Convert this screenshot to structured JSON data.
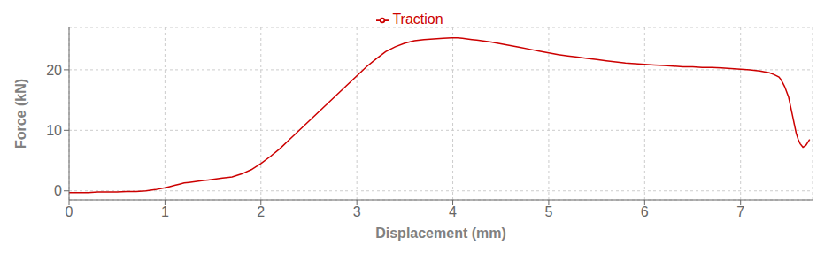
{
  "chart_data": {
    "type": "line",
    "xlabel": "Displacement (mm)",
    "ylabel": "Force (kN)",
    "xlim": [
      0,
      7.75
    ],
    "ylim": [
      -1.5,
      27
    ],
    "xticks": [
      0,
      1,
      2,
      3,
      4,
      5,
      6,
      7
    ],
    "yticks": [
      0,
      10,
      20
    ],
    "grid": true,
    "legend": "top",
    "x": [
      0.0,
      0.05,
      0.1,
      0.2,
      0.3,
      0.4,
      0.5,
      0.6,
      0.7,
      0.8,
      0.9,
      1.0,
      1.05,
      1.1,
      1.15,
      1.2,
      1.25,
      1.3,
      1.35,
      1.4,
      1.45,
      1.5,
      1.55,
      1.6,
      1.7,
      1.8,
      1.9,
      2.0,
      2.1,
      2.2,
      2.3,
      2.4,
      2.5,
      2.6,
      2.7,
      2.8,
      2.9,
      3.0,
      3.1,
      3.2,
      3.3,
      3.4,
      3.5,
      3.6,
      3.7,
      3.8,
      3.9,
      4.0,
      4.05,
      4.1,
      4.15,
      4.2,
      4.25,
      4.3,
      4.35,
      4.4,
      4.5,
      4.6,
      4.7,
      4.8,
      4.9,
      5.0,
      5.1,
      5.2,
      5.3,
      5.4,
      5.5,
      5.6,
      5.7,
      5.8,
      5.9,
      6.0,
      6.1,
      6.2,
      6.3,
      6.4,
      6.5,
      6.6,
      6.7,
      6.8,
      6.9,
      7.0,
      7.1,
      7.2,
      7.3,
      7.35,
      7.4,
      7.42,
      7.44,
      7.46,
      7.5,
      7.52,
      7.54,
      7.56,
      7.58,
      7.6,
      7.62,
      7.65,
      7.68,
      7.72
    ],
    "series": [
      {
        "name": "Traction",
        "color": "#cc0000",
        "values": [
          -0.3,
          -0.3,
          -0.3,
          -0.3,
          -0.2,
          -0.2,
          -0.2,
          -0.1,
          -0.1,
          0.0,
          0.2,
          0.5,
          0.7,
          0.9,
          1.1,
          1.3,
          1.4,
          1.5,
          1.6,
          1.7,
          1.8,
          1.9,
          2.0,
          2.1,
          2.3,
          2.8,
          3.5,
          4.5,
          5.7,
          7.0,
          8.5,
          10.0,
          11.5,
          13.0,
          14.5,
          16.0,
          17.5,
          19.0,
          20.5,
          21.8,
          23.0,
          23.8,
          24.4,
          24.8,
          25.0,
          25.1,
          25.2,
          25.3,
          25.3,
          25.2,
          25.1,
          25.0,
          24.9,
          24.8,
          24.7,
          24.6,
          24.3,
          24.0,
          23.7,
          23.4,
          23.1,
          22.8,
          22.5,
          22.3,
          22.1,
          21.9,
          21.7,
          21.5,
          21.3,
          21.1,
          21.0,
          20.9,
          20.8,
          20.7,
          20.6,
          20.5,
          20.5,
          20.4,
          20.4,
          20.3,
          20.2,
          20.1,
          20.0,
          19.8,
          19.5,
          19.2,
          18.8,
          18.4,
          17.8,
          17.2,
          15.5,
          14.0,
          12.5,
          11.0,
          9.5,
          8.5,
          7.8,
          7.2,
          7.5,
          8.5
        ]
      }
    ]
  }
}
